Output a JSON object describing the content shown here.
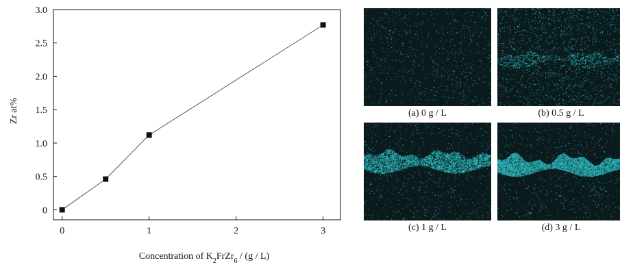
{
  "chart_data": {
    "type": "line",
    "x": [
      0,
      0.5,
      1,
      3
    ],
    "series": [
      {
        "values": [
          0,
          0.46,
          1.12,
          2.77
        ],
        "color": "#111111",
        "marker": "square"
      }
    ],
    "xlabel": "Concentration of K₂FrZr₆ / (g / L)",
    "ylabel": "Zr at%",
    "xlim": [
      -0.1,
      3.2
    ],
    "ylim": [
      -0.15,
      3.0
    ],
    "x_ticks": [
      "0",
      "1",
      "2",
      "3"
    ],
    "y_ticks": [
      "0",
      "0.5",
      "1.0",
      "1.5",
      "2.0",
      "2.5",
      "3.0"
    ],
    "grid": false
  },
  "panels": [
    {
      "caption": "(a) 0 g / L",
      "zr_signal": "none"
    },
    {
      "caption": "(b) 0.5 g / L",
      "zr_signal": "faint band"
    },
    {
      "caption": "(c) 1 g / L",
      "zr_signal": "bright band"
    },
    {
      "caption": "(d) 3 g / L",
      "zr_signal": "brightest band"
    }
  ],
  "colors": {
    "map_background": "#0b1a1c",
    "map_signal": "#3fd0d4"
  }
}
